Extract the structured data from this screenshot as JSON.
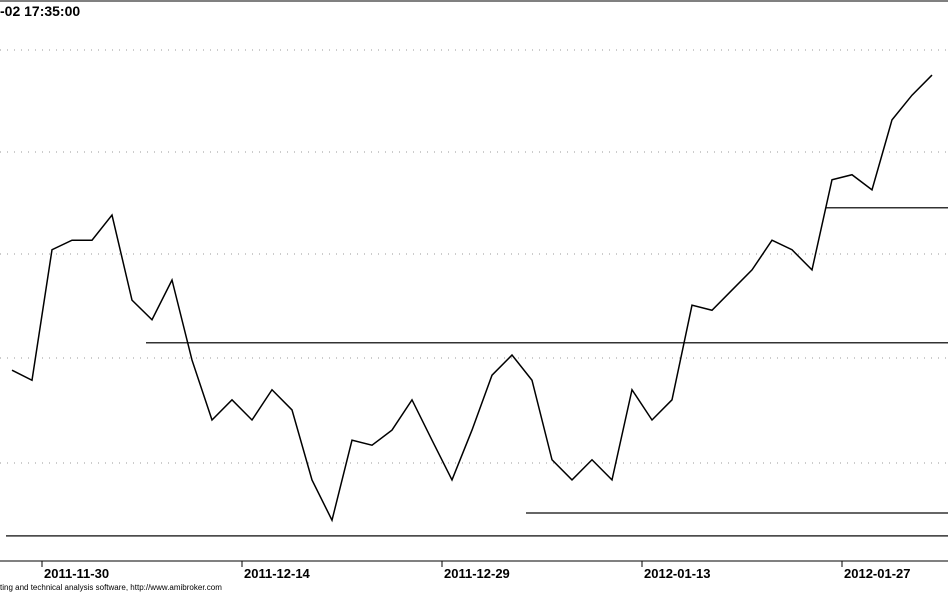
{
  "chart_data": {
    "type": "line",
    "timestamp": "-02 17:35:00",
    "footer": "ting and technical analysis software, http://www.amibroker.com",
    "categories": [
      null,
      null,
      "2011-11-30",
      null,
      null,
      null,
      null,
      null,
      null,
      null,
      null,
      null,
      "2011-12-14",
      null,
      null,
      null,
      null,
      null,
      null,
      null,
      null,
      null,
      "2011-12-29",
      null,
      null,
      null,
      null,
      null,
      null,
      null,
      null,
      null,
      "2012-01-13",
      null,
      null,
      null,
      null,
      null,
      null,
      null,
      null,
      null,
      "2012-01-27",
      null,
      null,
      null,
      null
    ],
    "series": [
      {
        "color": "#000000",
        "values": [
          33.9,
          32.1,
          55.4,
          57.1,
          57.1,
          61.6,
          46.4,
          42.9,
          50.0,
          35.7,
          25.0,
          28.6,
          25.0,
          30.4,
          26.8,
          14.3,
          7.1,
          21.4,
          20.5,
          23.2,
          28.6,
          21.4,
          14.3,
          23.2,
          33.0,
          36.6,
          32.1,
          17.9,
          14.3,
          17.9,
          14.3,
          30.4,
          25.0,
          28.6,
          45.5,
          44.6,
          48.2,
          51.8,
          57.1,
          55.4,
          51.8,
          67.9,
          68.8,
          66.1,
          78.6,
          83.0,
          86.6
        ]
      }
    ],
    "levels": [
      {
        "value": 38.8,
        "from_index": 7
      },
      {
        "value": 62.9,
        "from_index": 41
      },
      {
        "value": 8.4,
        "from_index": 26
      },
      {
        "value": 4.3,
        "from_index": 0
      }
    ],
    "ylim": [
      0,
      100
    ]
  }
}
